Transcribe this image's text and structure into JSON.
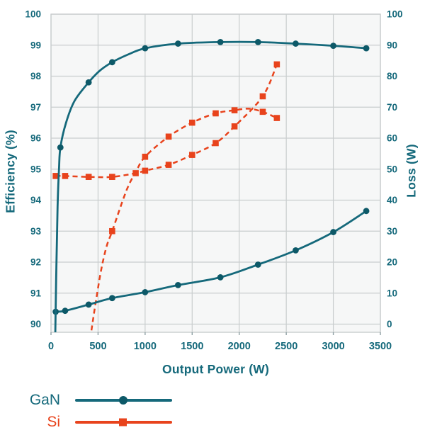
{
  "figure": {
    "xlabel": "Output Power (W)",
    "ylabel_left": "Efficiency (%)",
    "ylabel_right": "Loss (W)"
  },
  "legend": {
    "items": [
      {
        "label": "GaN",
        "marker": "circle",
        "line_style": "solid"
      },
      {
        "label": "Si",
        "marker": "square",
        "line_style": "solid"
      }
    ]
  },
  "chart_data": {
    "type": "line",
    "title": "",
    "xlabel": "Output Power (W)",
    "ylabel_left": "Efficiency (%)",
    "ylabel_right": "Loss (W)",
    "x_axis": {
      "min": 0,
      "max": 3500,
      "ticks": [
        0,
        500,
        1000,
        1500,
        2000,
        2500,
        3000,
        3500
      ]
    },
    "y_axis_left": {
      "min": 90,
      "max": 100,
      "ticks": [
        90,
        91,
        92,
        93,
        94,
        95,
        96,
        97,
        98,
        99,
        100
      ]
    },
    "y_axis_right": {
      "min": 0,
      "max": 100,
      "ticks": [
        0,
        10,
        20,
        30,
        40,
        50,
        60,
        70,
        80,
        90,
        100
      ]
    },
    "grid": true,
    "legend_position": "bottom-left",
    "colors": {
      "gan": "#15697b",
      "gan_marker": "#0d5968",
      "si": "#e8431c",
      "grid": "#c9cdce",
      "plot_bg": "#f6f7f7",
      "text": "#15697b",
      "tick": "#8fa0a4"
    },
    "series": [
      {
        "name": "Si Loss",
        "group": "Si",
        "axis": "right",
        "style": "dashed",
        "marker": "square",
        "color_key": "si",
        "points": [
          [
            50,
            47.8
          ],
          [
            150,
            47.8
          ],
          [
            400,
            47.5
          ],
          [
            650,
            47.5
          ],
          [
            900,
            48.7
          ],
          [
            1000,
            49.5
          ],
          [
            1250,
            51.4
          ],
          [
            1500,
            54.6
          ],
          [
            1750,
            58.4
          ],
          [
            1950,
            63.8
          ],
          [
            2250,
            73.5
          ],
          [
            2400,
            83.8
          ]
        ],
        "line_shape": [
          [
            50,
            47.8
          ],
          [
            150,
            47.8
          ],
          [
            400,
            47.5
          ],
          [
            650,
            47.5
          ],
          [
            900,
            48.7
          ],
          [
            1000,
            49.5
          ],
          [
            1250,
            51.4
          ],
          [
            1500,
            54.6
          ],
          [
            1750,
            58.4
          ],
          [
            1950,
            63.8
          ],
          [
            2250,
            73.5
          ],
          [
            2400,
            83.8
          ]
        ]
      },
      {
        "name": "Si Efficiency",
        "group": "Si",
        "axis": "left",
        "style": "dashed",
        "marker": "square",
        "color_key": "si",
        "points": [
          [
            650,
            93.0
          ],
          [
            1000,
            95.4
          ],
          [
            1250,
            96.05
          ],
          [
            1500,
            96.5
          ],
          [
            1750,
            96.8
          ],
          [
            1950,
            96.9
          ],
          [
            2250,
            96.85
          ],
          [
            2400,
            96.65
          ]
        ],
        "line_shape": [
          [
            430,
            89.8
          ],
          [
            470,
            90.6
          ],
          [
            530,
            91.7
          ],
          [
            590,
            92.5
          ],
          [
            650,
            93.0
          ],
          [
            800,
            94.3
          ],
          [
            900,
            94.9
          ],
          [
            1000,
            95.4
          ],
          [
            1250,
            96.05
          ],
          [
            1500,
            96.5
          ],
          [
            1750,
            96.8
          ],
          [
            1950,
            96.9
          ],
          [
            2100,
            96.95
          ],
          [
            2250,
            96.85
          ],
          [
            2400,
            96.65
          ]
        ]
      },
      {
        "name": "GaN Loss",
        "group": "GaN",
        "axis": "right",
        "style": "solid",
        "marker": "circle",
        "color_key": "gan",
        "points": [
          [
            50,
            4
          ],
          [
            150,
            4.3
          ],
          [
            400,
            6.3
          ],
          [
            650,
            8.4
          ],
          [
            1000,
            10.3
          ],
          [
            1350,
            12.6
          ],
          [
            1800,
            15.1
          ],
          [
            2200,
            19.2
          ],
          [
            2600,
            23.8
          ],
          [
            3000,
            29.7
          ],
          [
            3350,
            36.5
          ]
        ],
        "line_shape": [
          [
            50,
            4
          ],
          [
            150,
            4.3
          ],
          [
            400,
            6.3
          ],
          [
            650,
            8.4
          ],
          [
            1000,
            10.3
          ],
          [
            1350,
            12.6
          ],
          [
            1800,
            15.1
          ],
          [
            2200,
            19.2
          ],
          [
            2600,
            23.8
          ],
          [
            3000,
            29.7
          ],
          [
            3350,
            36.5
          ]
        ]
      },
      {
        "name": "GaN Efficiency",
        "group": "GaN",
        "axis": "left",
        "style": "solid",
        "marker": "circle",
        "color_key": "gan",
        "points": [
          [
            100,
            95.7
          ],
          [
            400,
            97.8
          ],
          [
            650,
            98.45
          ],
          [
            1000,
            98.9
          ],
          [
            1350,
            99.05
          ],
          [
            1800,
            99.1
          ],
          [
            2200,
            99.1
          ],
          [
            2600,
            99.05
          ],
          [
            3000,
            98.98
          ],
          [
            3350,
            98.9
          ]
        ],
        "line_shape": [
          [
            40,
            88.5
          ],
          [
            55,
            91.5
          ],
          [
            70,
            93.8
          ],
          [
            85,
            95.0
          ],
          [
            100,
            95.7
          ],
          [
            160,
            96.5
          ],
          [
            250,
            97.2
          ],
          [
            400,
            97.8
          ],
          [
            520,
            98.18
          ],
          [
            650,
            98.45
          ],
          [
            820,
            98.7
          ],
          [
            1000,
            98.9
          ],
          [
            1350,
            99.05
          ],
          [
            1800,
            99.1
          ],
          [
            2200,
            99.1
          ],
          [
            2600,
            99.05
          ],
          [
            3000,
            98.98
          ],
          [
            3350,
            98.9
          ]
        ]
      }
    ]
  }
}
